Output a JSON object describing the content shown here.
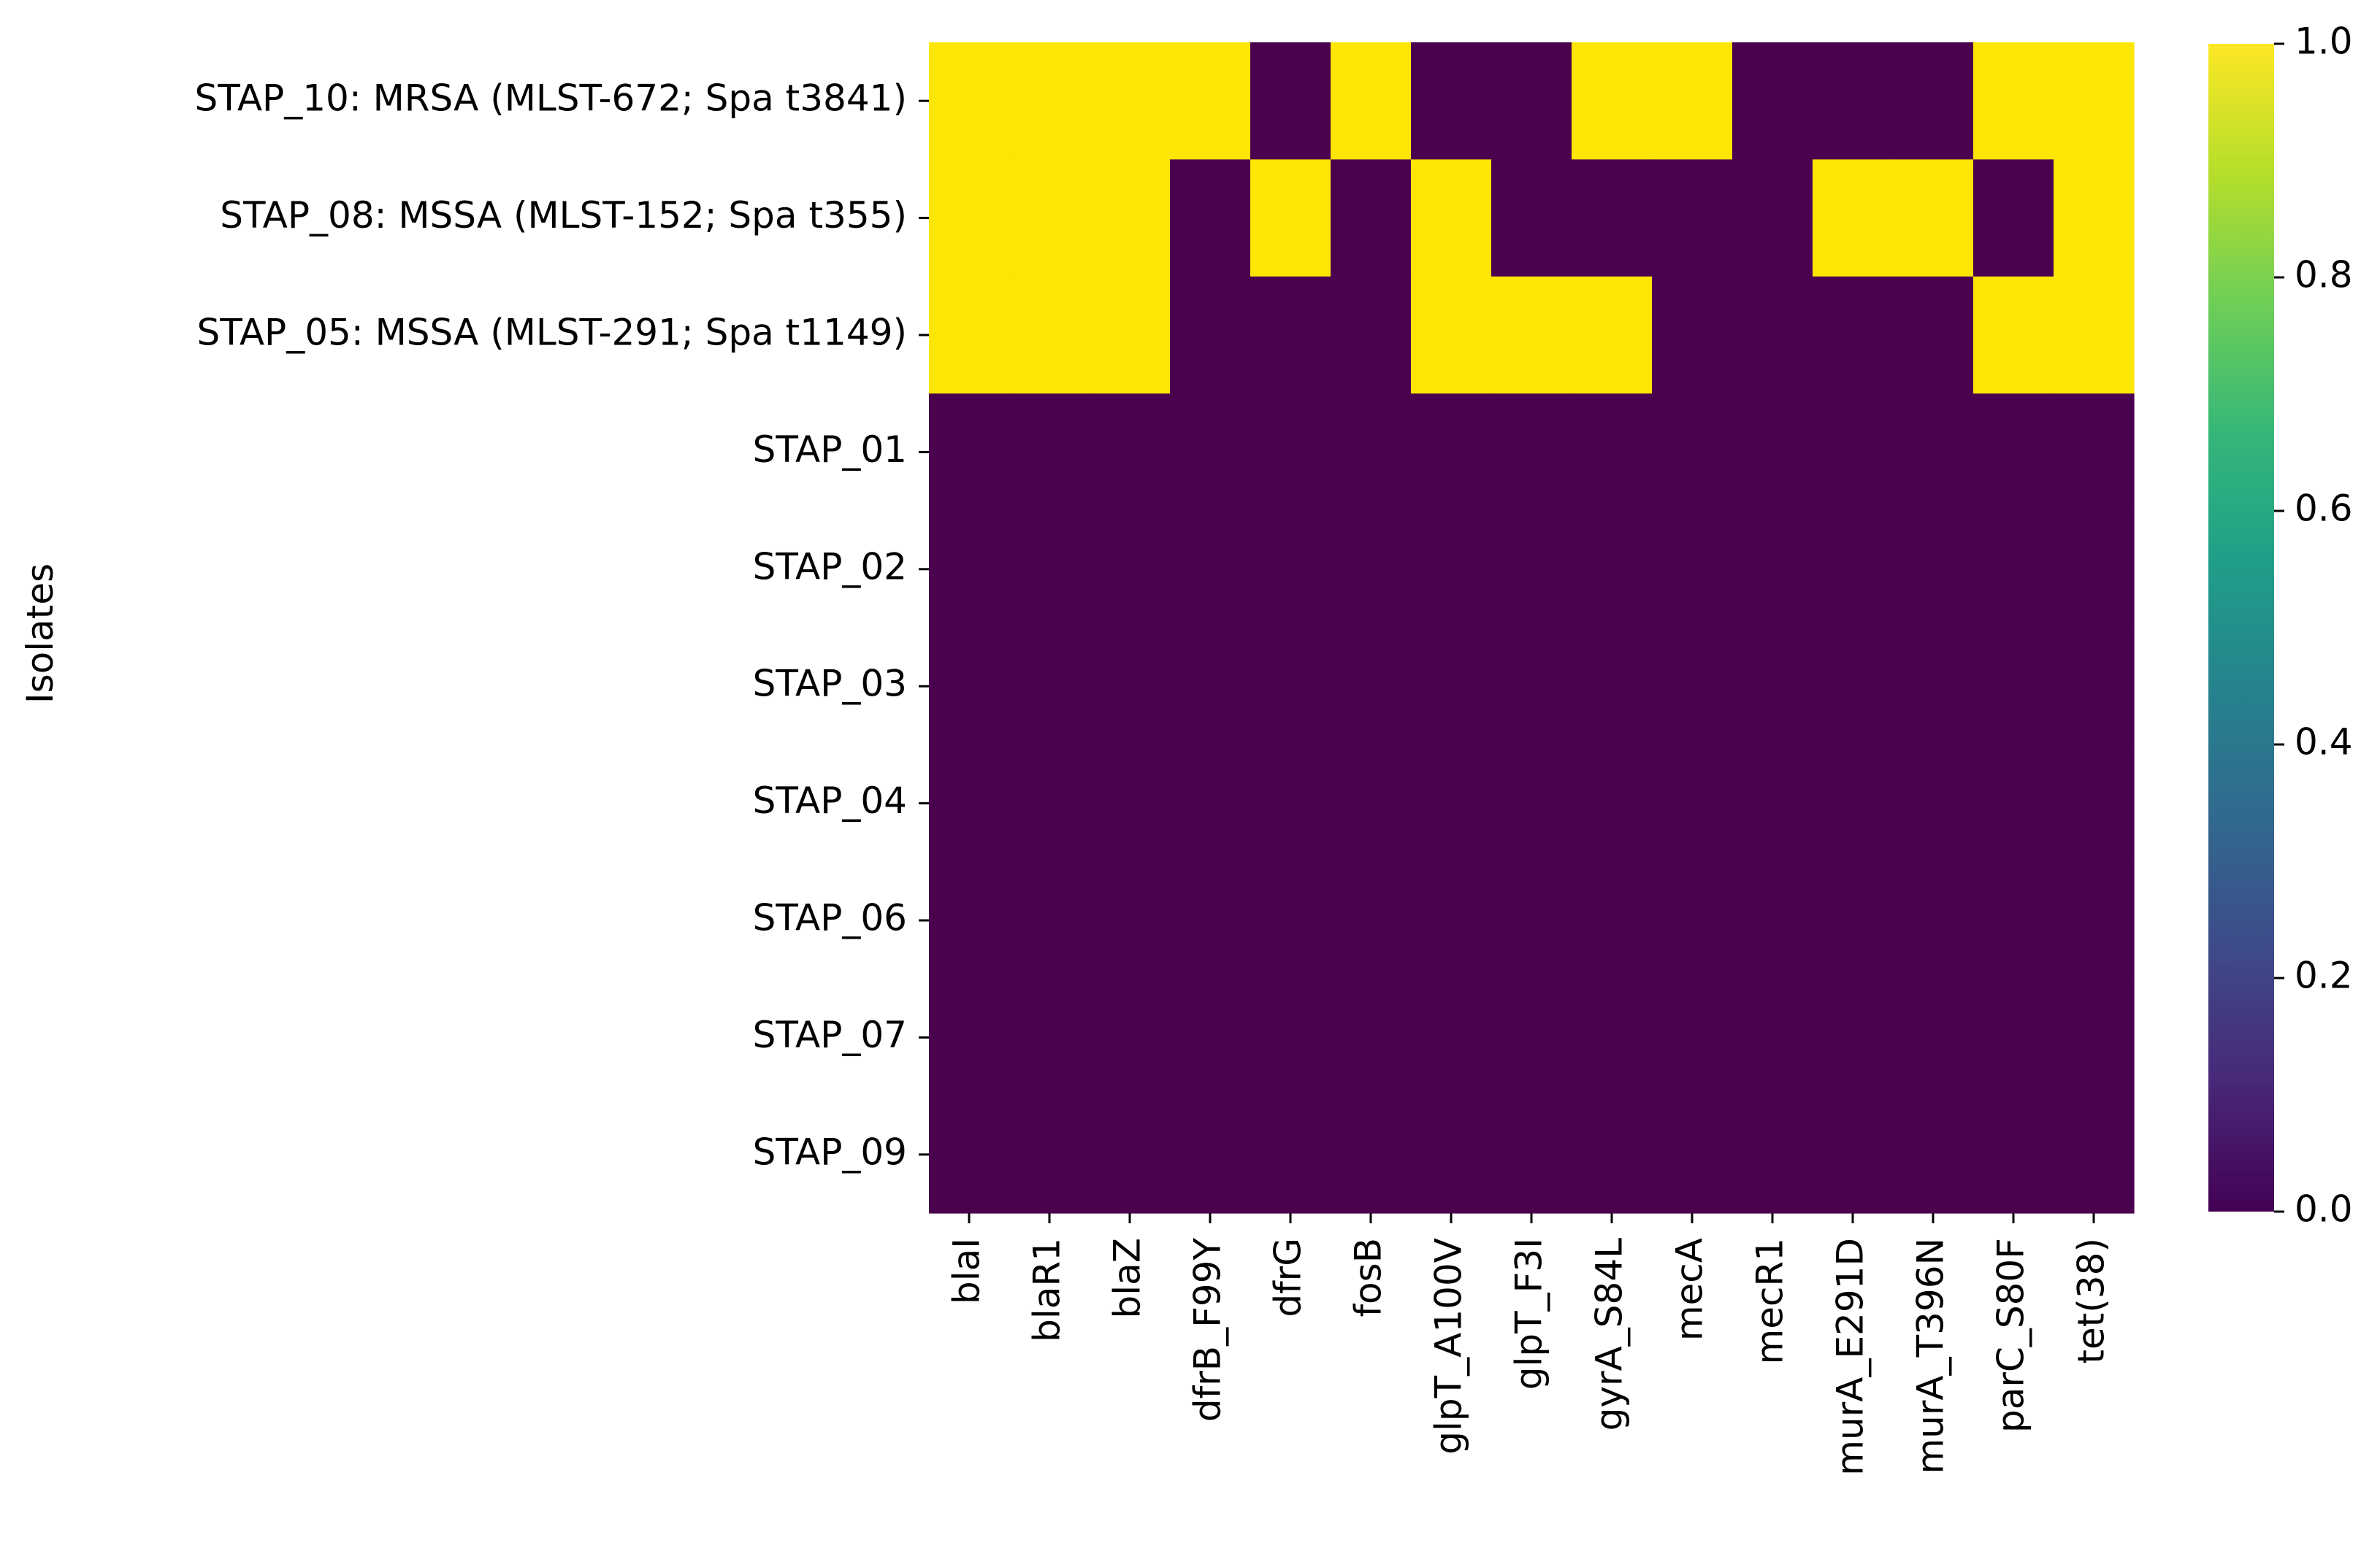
{
  "chart_data": {
    "type": "heatmap",
    "ylabel": "Isolates",
    "xlabel": "",
    "columns": [
      "blaI",
      "blaR1",
      "blaZ",
      "dfrB_F99Y",
      "dfrG",
      "fosB",
      "glpT_A100V",
      "glpT_F3I",
      "gyrA_S84L",
      "mecA",
      "mecR1",
      "murA_E291D",
      "murA_T396N",
      "parC_S80F",
      "tet(38)"
    ],
    "rows": [
      "STAP_10: MRSA (MLST-672; Spa t3841)",
      "STAP_08: MSSA (MLST-152; Spa t355)",
      "STAP_05: MSSA (MLST-291; Spa t1149)",
      "STAP_01",
      "STAP_02",
      "STAP_03",
      "STAP_04",
      "STAP_06",
      "STAP_07",
      "STAP_09"
    ],
    "values": [
      [
        1,
        1,
        1,
        1,
        0,
        1,
        0,
        0,
        1,
        1,
        0,
        0,
        0,
        1,
        1
      ],
      [
        1,
        1,
        1,
        0,
        1,
        0,
        1,
        0,
        0,
        0,
        0,
        1,
        1,
        0,
        1
      ],
      [
        1,
        1,
        1,
        0,
        0,
        0,
        1,
        1,
        1,
        0,
        0,
        0,
        0,
        1,
        1
      ],
      [
        0,
        0,
        0,
        0,
        0,
        0,
        0,
        0,
        0,
        0,
        0,
        0,
        0,
        0,
        0
      ],
      [
        0,
        0,
        0,
        0,
        0,
        0,
        0,
        0,
        0,
        0,
        0,
        0,
        0,
        0,
        0
      ],
      [
        0,
        0,
        0,
        0,
        0,
        0,
        0,
        0,
        0,
        0,
        0,
        0,
        0,
        0,
        0
      ],
      [
        0,
        0,
        0,
        0,
        0,
        0,
        0,
        0,
        0,
        0,
        0,
        0,
        0,
        0,
        0
      ],
      [
        0,
        0,
        0,
        0,
        0,
        0,
        0,
        0,
        0,
        0,
        0,
        0,
        0,
        0,
        0
      ],
      [
        0,
        0,
        0,
        0,
        0,
        0,
        0,
        0,
        0,
        0,
        0,
        0,
        0,
        0,
        0
      ],
      [
        0,
        0,
        0,
        0,
        0,
        0,
        0,
        0,
        0,
        0,
        0,
        0,
        0,
        0,
        0
      ]
    ],
    "colormap": "viridis",
    "colorbar": {
      "range": [
        0.0,
        1.0
      ],
      "ticks": [
        "0.0",
        "0.2",
        "0.4",
        "0.6",
        "0.8",
        "1.0"
      ],
      "stops": [
        "#440154",
        "#482878",
        "#3e4a89",
        "#31688e",
        "#26828e",
        "#1f9e89",
        "#35b779",
        "#6ece58",
        "#b5de2b",
        "#fde725"
      ]
    },
    "colors": {
      "low": "#4b024e",
      "high": "#fde504"
    },
    "grid": false
  }
}
